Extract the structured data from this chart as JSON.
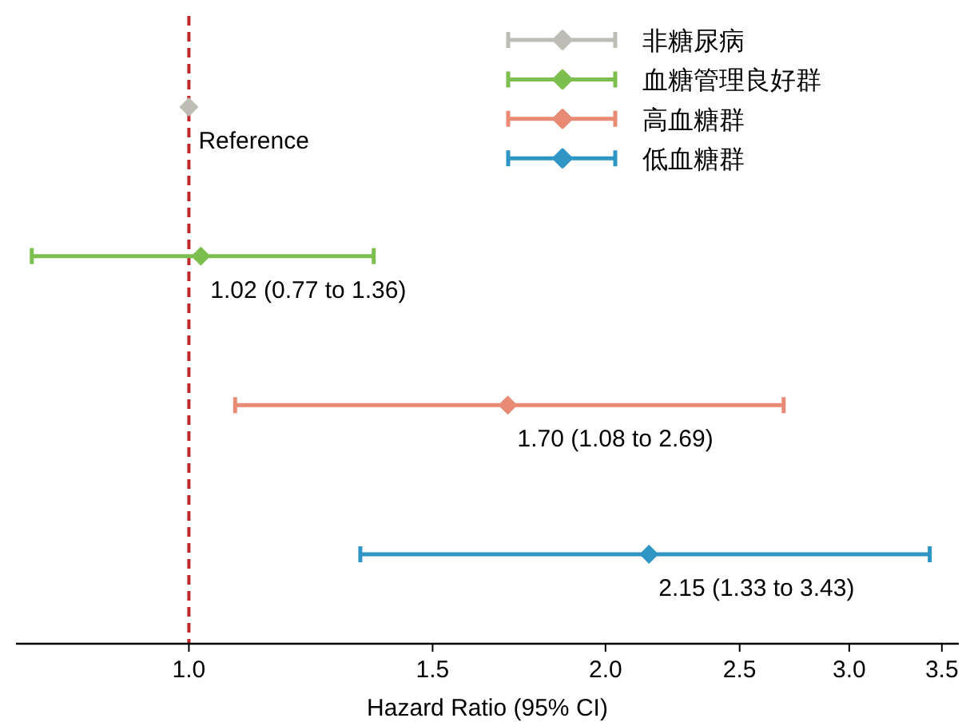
{
  "chart_data": {
    "type": "scatter",
    "orientation": "horizontal",
    "categories": [
      null,
      null,
      null,
      null
    ],
    "xlabel": "Hazard Ratio (95% CI)",
    "log": "x",
    "xlim": [
      0.75,
      3.6
    ],
    "xticks": [
      {
        "value": 1,
        "label": "1.0"
      },
      1.5,
      {
        "value": 2,
        "label": "2.0"
      },
      2.5,
      {
        "value": 3,
        "label": "3.0"
      },
      3.5
    ],
    "tick_labels": "x",
    "grid": false,
    "legend": "top right",
    "marker": "diamond",
    "ref_lines": [
      {
        "axis": "x",
        "value": 1,
        "color": "#c0282d",
        "line_style": "dashed"
      }
    ],
    "series": [
      {
        "name": "非糖尿病",
        "color": "#bdbdb5",
        "values": [
          1,
          null,
          null,
          null
        ],
        "errors": [
          null,
          null,
          null,
          null
        ],
        "value_labels": [
          "Reference",
          null,
          null,
          null
        ]
      },
      {
        "name": "血糖管理良好群",
        "color": "#7dbf4f",
        "values": [
          null,
          1.02,
          null,
          null
        ],
        "errors": [
          null,
          [
            0.77,
            1.36
          ],
          null,
          null
        ],
        "value_labels": [
          null,
          "1.02 (0.77 to 1.36)",
          null,
          null
        ]
      },
      {
        "name": "高血糖群",
        "color": "#e98a74",
        "values": [
          null,
          null,
          1.7,
          null
        ],
        "errors": [
          null,
          null,
          [
            1.08,
            2.69
          ],
          null
        ],
        "value_labels": [
          null,
          null,
          "1.70 (1.08 to 2.69)",
          null
        ]
      },
      {
        "name": "低血糖群",
        "color": "#2f95c4",
        "values": [
          null,
          null,
          null,
          2.15
        ],
        "errors": [
          null,
          null,
          null,
          [
            1.33,
            3.43
          ]
        ],
        "value_labels": [
          null,
          null,
          null,
          "2.15 (1.33 to 3.43)"
        ]
      }
    ]
  }
}
